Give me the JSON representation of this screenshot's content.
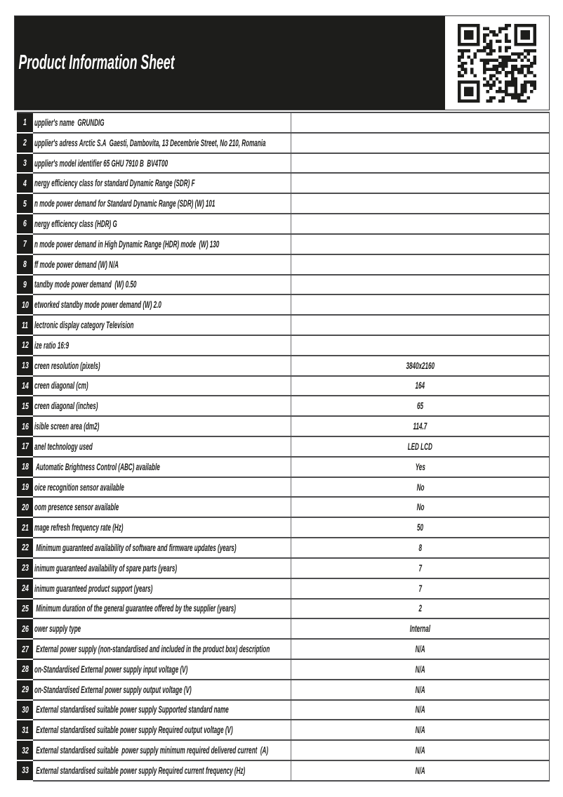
{
  "header": {
    "title": "Product Information Sheet",
    "qr_icon": "qr-code"
  },
  "colors": {
    "header_bg": "#1d1d1b",
    "badge_bg": "#1d1d1b",
    "border": "#4d4d4f",
    "text": "#1d1d1b",
    "page_bg": "#ffffff"
  },
  "table": {
    "rows": [
      {
        "num": "1",
        "label": "upplier's name  GRUNDIG",
        "value": ""
      },
      {
        "num": "2",
        "label": "upplier's adress Arctic S.A  Gaesti, Dambovita, 13 Decembrie Street, No 210, Romania",
        "value": ""
      },
      {
        "num": "3",
        "label": "upplier's model identifier 65 GHU 7910 B  BV4T00",
        "value": ""
      },
      {
        "num": "4",
        "label": "nergy efficiency class for standard Dynamic Range (SDR) F",
        "value": ""
      },
      {
        "num": "5",
        "label": "n mode power demand for Standard Dynamic Range (SDR) (W) 101",
        "value": ""
      },
      {
        "num": "6",
        "label": "nergy efficiency class (HDR) G",
        "value": ""
      },
      {
        "num": "7",
        "label": "n mode power demand in High Dynamic Range (HDR) mode  (W) 130",
        "value": ""
      },
      {
        "num": "8",
        "label": "ff mode power demand (W) N/A",
        "value": ""
      },
      {
        "num": "9",
        "label": "tandby mode power demand  (W) 0.50",
        "value": ""
      },
      {
        "num": "10",
        "label": "etworked standby mode power demand (W) 2.0",
        "value": ""
      },
      {
        "num": "11",
        "label": "lectronic display category Television",
        "value": ""
      },
      {
        "num": "12",
        "label": "ize ratio 16:9",
        "value": ""
      },
      {
        "num": "13",
        "label": "creen resolution (pixels)",
        "value": "3840x2160"
      },
      {
        "num": "14",
        "label": "creen diagonal (cm)",
        "value": "164"
      },
      {
        "num": "15",
        "label": "creen diagonal (inches)",
        "value": "65"
      },
      {
        "num": "16",
        "label": "isible screen area (dm2)",
        "value": "114.7"
      },
      {
        "num": "17",
        "label": "anel technology used",
        "value": "LED LCD"
      },
      {
        "num": "18",
        "label": " Automatic Brightness Control (ABC) available",
        "value": "Yes"
      },
      {
        "num": "19",
        "label": "oice recognition sensor available",
        "value": "No"
      },
      {
        "num": "20",
        "label": "oom presence sensor available",
        "value": "No"
      },
      {
        "num": "21",
        "label": "mage refresh frequency rate (Hz)",
        "value": "50"
      },
      {
        "num": "22",
        "label": " Minimum guaranteed availability of software and firmware updates (years)",
        "value": "8"
      },
      {
        "num": "23",
        "label": "inimum guaranteed availability of spare parts (years)",
        "value": "7"
      },
      {
        "num": "24",
        "label": "inimum guaranteed product support (years)",
        "value": "7"
      },
      {
        "num": "25",
        "label": " Minimum duration of the general guarantee offered by the supplier (years)",
        "value": "2"
      },
      {
        "num": "26",
        "label": "ower supply type",
        "value": "Internal"
      },
      {
        "num": "27",
        "label": " External power supply (non-standardised and included in the product box) description",
        "value": "N/A"
      },
      {
        "num": "28",
        "label": "on-Standardised External power supply input voltage (V)",
        "value": "N/A"
      },
      {
        "num": "29",
        "label": "on-Standardised External power supply output voltage (V)",
        "value": "N/A"
      },
      {
        "num": "30",
        "label": " External standardised suitable power supply Supported standard name",
        "value": "N/A"
      },
      {
        "num": "31",
        "label": " External standardised suitable power supply Required output voltage (V)",
        "value": "N/A"
      },
      {
        "num": "32",
        "label": " External standardised suitable  power supply minimum required delivered current  (A)",
        "value": "N/A"
      },
      {
        "num": "33",
        "label": " External standardised suitable power supply Required current frequency (Hz)",
        "value": "N/A"
      }
    ]
  }
}
